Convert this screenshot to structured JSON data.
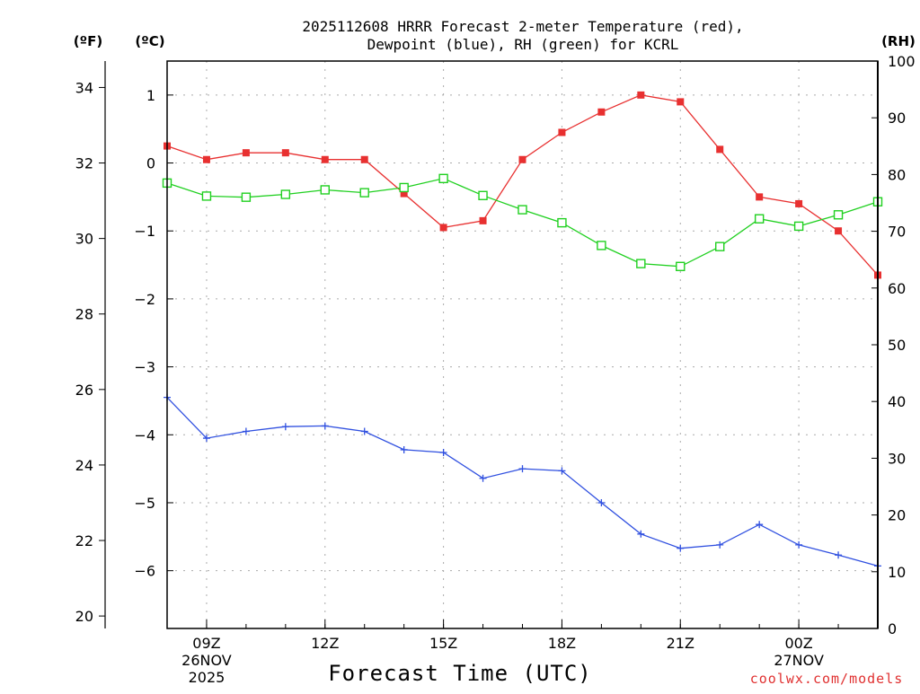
{
  "chart_data": {
    "type": "line",
    "title": [
      "2025112608 HRRR Forecast 2-meter Temperature (red),",
      "Dewpoint (blue), RH (green) for KCRL"
    ],
    "xlabel": "Forecast Time (UTC)",
    "credit": "coolwx.com/models",
    "units": {
      "fahrenheit": "(ºF)",
      "celsius": "(ºC)",
      "rh": "(RH)"
    },
    "x_hours": [
      8,
      9,
      10,
      11,
      12,
      13,
      14,
      15,
      16,
      17,
      18,
      19,
      20,
      21,
      22,
      23,
      24,
      25,
      26
    ],
    "xlim": [
      8,
      26
    ],
    "x_ticks": [
      {
        "hour": 9,
        "label": "09Z",
        "date": [
          "26NOV",
          "2025"
        ]
      },
      {
        "hour": 12,
        "label": "12Z",
        "date": []
      },
      {
        "hour": 15,
        "label": "15Z",
        "date": []
      },
      {
        "hour": 18,
        "label": "18Z",
        "date": []
      },
      {
        "hour": 21,
        "label": "21Z",
        "date": []
      },
      {
        "hour": 24,
        "label": "00Z",
        "date": [
          "27NOV"
        ]
      }
    ],
    "celsius_axis": {
      "ylim": [
        -6.85,
        1.5
      ],
      "ticks": [
        1,
        0,
        -1,
        -2,
        -3,
        -4,
        -5,
        -6
      ],
      "tick_labels": [
        "1",
        "0",
        "−1",
        "−2",
        "−3",
        "−4",
        "−5",
        "−6"
      ]
    },
    "fahrenheit_axis": {
      "ylim": [
        19.67,
        34.7
      ],
      "ticks": [
        34,
        32,
        30,
        28,
        26,
        24,
        22,
        20
      ],
      "tick_labels": [
        "34",
        "32",
        "30",
        "28",
        "26",
        "24",
        "22",
        "20"
      ]
    },
    "rh_axis": {
      "ylim": [
        0,
        100
      ],
      "ticks": [
        100,
        90,
        80,
        70,
        60,
        50,
        40,
        30,
        20,
        10,
        0
      ],
      "tick_labels": [
        "100",
        "90",
        "80",
        "70",
        "60",
        "50",
        "40",
        "30",
        "20",
        "10",
        "0"
      ]
    },
    "series": [
      {
        "name": "Temperature",
        "axis": "celsius",
        "color": "#e83030",
        "marker": "filled-square",
        "values": [
          0.25,
          0.05,
          0.15,
          0.15,
          0.05,
          0.05,
          -0.45,
          -0.95,
          -0.85,
          0.05,
          0.45,
          0.75,
          1.0,
          0.9,
          0.2,
          -0.5,
          -0.6,
          -1.0,
          -1.65
        ]
      },
      {
        "name": "Dewpoint",
        "axis": "celsius",
        "color": "#3050e0",
        "marker": "plus",
        "values": [
          -3.45,
          -4.05,
          -3.95,
          -3.88,
          -3.87,
          -3.95,
          -4.22,
          -4.26,
          -4.64,
          -4.5,
          -4.53,
          -5.0,
          -5.46,
          -5.67,
          -5.62,
          -5.32,
          -5.62,
          -5.77,
          -5.93
        ]
      },
      {
        "name": "RH",
        "axis": "rh",
        "color": "#20d020",
        "marker": "open-square",
        "values": [
          78.5,
          76.2,
          76.0,
          76.5,
          77.3,
          76.8,
          77.7,
          79.3,
          76.3,
          73.8,
          71.5,
          67.5,
          64.3,
          63.8,
          67.3,
          72.2,
          70.9,
          72.9,
          75.2
        ]
      }
    ]
  }
}
